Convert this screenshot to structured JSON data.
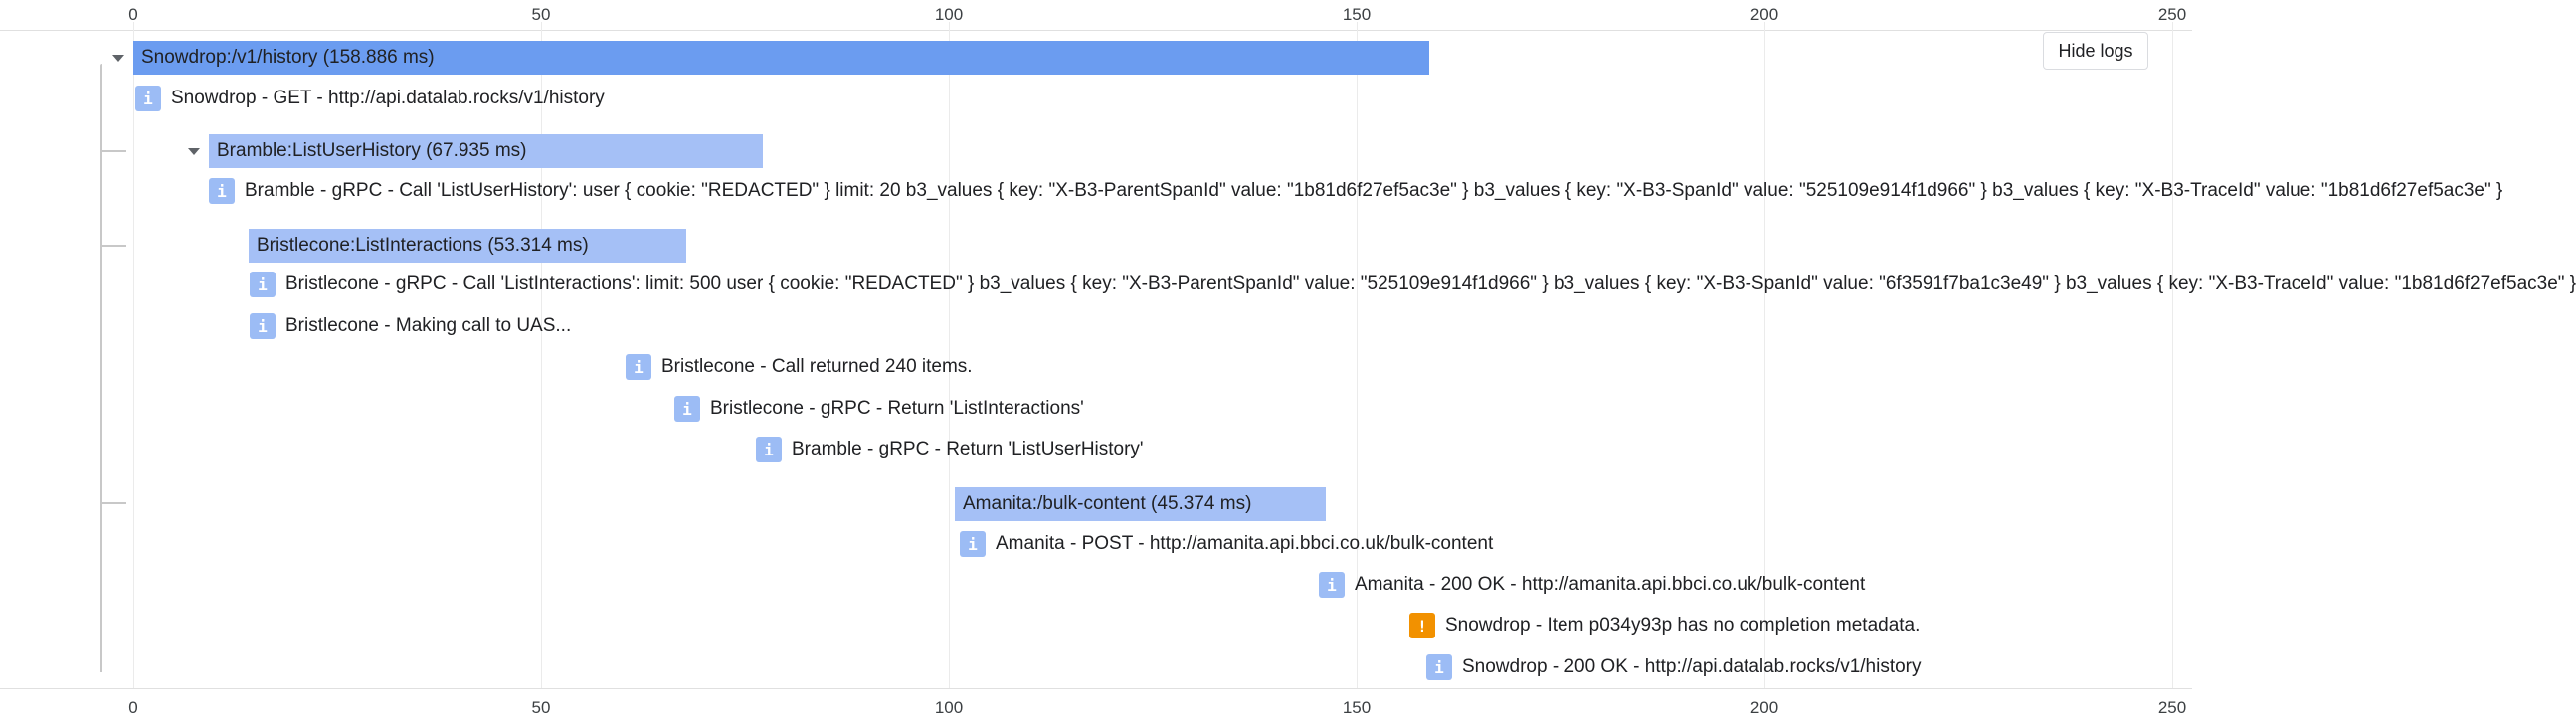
{
  "axis": {
    "ticks": [
      "0",
      "50",
      "100",
      "150",
      "200",
      "250"
    ]
  },
  "toolbar": {
    "hide_logs_label": "Hide logs"
  },
  "spans": [
    {
      "label": "Snowdrop:/v1/history (158.886 ms)",
      "color": "#6b9cf0"
    },
    {
      "label": "Bramble:ListUserHistory (67.935 ms)",
      "color": "#a5c0f6"
    },
    {
      "label": "Bristlecone:ListInteractions (53.314 ms)",
      "color": "#a5c0f6"
    },
    {
      "label": "Amanita:/bulk-content (45.374 ms)",
      "color": "#a5c0f6"
    }
  ],
  "logs": [
    {
      "icon": "i",
      "level": "info",
      "text": "Snowdrop - GET - http://api.datalab.rocks/v1/history"
    },
    {
      "icon": "i",
      "level": "info",
      "text": "Bramble - gRPC - Call 'ListUserHistory': user { cookie: \"REDACTED\" } limit: 20 b3_values { key: \"X-B3-ParentSpanId\" value: \"1b81d6f27ef5ac3e\" } b3_values { key: \"X-B3-SpanId\" value: \"525109e914f1d966\" } b3_values { key: \"X-B3-TraceId\" value: \"1b81d6f27ef5ac3e\" }"
    },
    {
      "icon": "i",
      "level": "info",
      "text": "Bristlecone - gRPC - Call 'ListInteractions': limit: 500 user { cookie: \"REDACTED\" } b3_values { key: \"X-B3-ParentSpanId\" value: \"525109e914f1d966\" } b3_values { key: \"X-B3-SpanId\" value: \"6f3591f7ba1c3e49\" } b3_values { key: \"X-B3-TraceId\" value: \"1b81d6f27ef5ac3e\" }"
    },
    {
      "icon": "i",
      "level": "info",
      "text": "Bristlecone - Making call to UAS..."
    },
    {
      "icon": "i",
      "level": "info",
      "text": "Bristlecone - Call returned 240 items."
    },
    {
      "icon": "i",
      "level": "info",
      "text": "Bristlecone - gRPC - Return 'ListInteractions'"
    },
    {
      "icon": "i",
      "level": "info",
      "text": "Bramble - gRPC - Return 'ListUserHistory'"
    },
    {
      "icon": "i",
      "level": "info",
      "text": "Amanita - POST - http://amanita.api.bbci.co.uk/bulk-content"
    },
    {
      "icon": "i",
      "level": "info",
      "text": "Amanita - 200 OK - http://amanita.api.bbci.co.uk/bulk-content"
    },
    {
      "icon": "!",
      "level": "warn",
      "text": "Snowdrop - Item p034y93p has no completion metadata."
    },
    {
      "icon": "i",
      "level": "info",
      "text": "Snowdrop - 200 OK - http://api.datalab.rocks/v1/history"
    }
  ]
}
